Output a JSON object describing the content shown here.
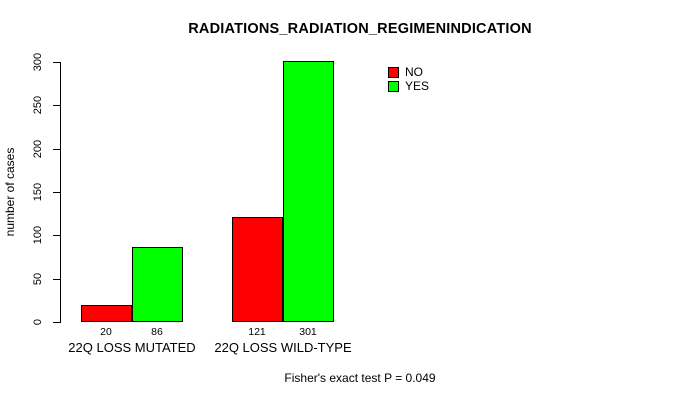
{
  "chart_data": {
    "type": "bar",
    "title": "RADIATIONS_RADIATION_REGIMENINDICATION",
    "ylabel": "number of cases",
    "xlabel": "",
    "ylim": [
      0,
      300
    ],
    "yticks": [
      0,
      50,
      100,
      150,
      200,
      250,
      300
    ],
    "categories": [
      "22Q LOSS MUTATED",
      "22Q LOSS WILD-TYPE"
    ],
    "series": [
      {
        "name": "NO",
        "color": "#FF0000",
        "values": [
          20,
          121
        ]
      },
      {
        "name": "YES",
        "color": "#00FF00",
        "values": [
          86,
          301
        ]
      }
    ],
    "bar_value_labels": [
      [
        "20",
        "86"
      ],
      [
        "121",
        "301"
      ]
    ],
    "legend": {
      "position": "top-right",
      "entries": [
        "NO",
        "YES"
      ]
    },
    "grid": false,
    "annotation": "Fisher's exact test P = 0.049"
  }
}
